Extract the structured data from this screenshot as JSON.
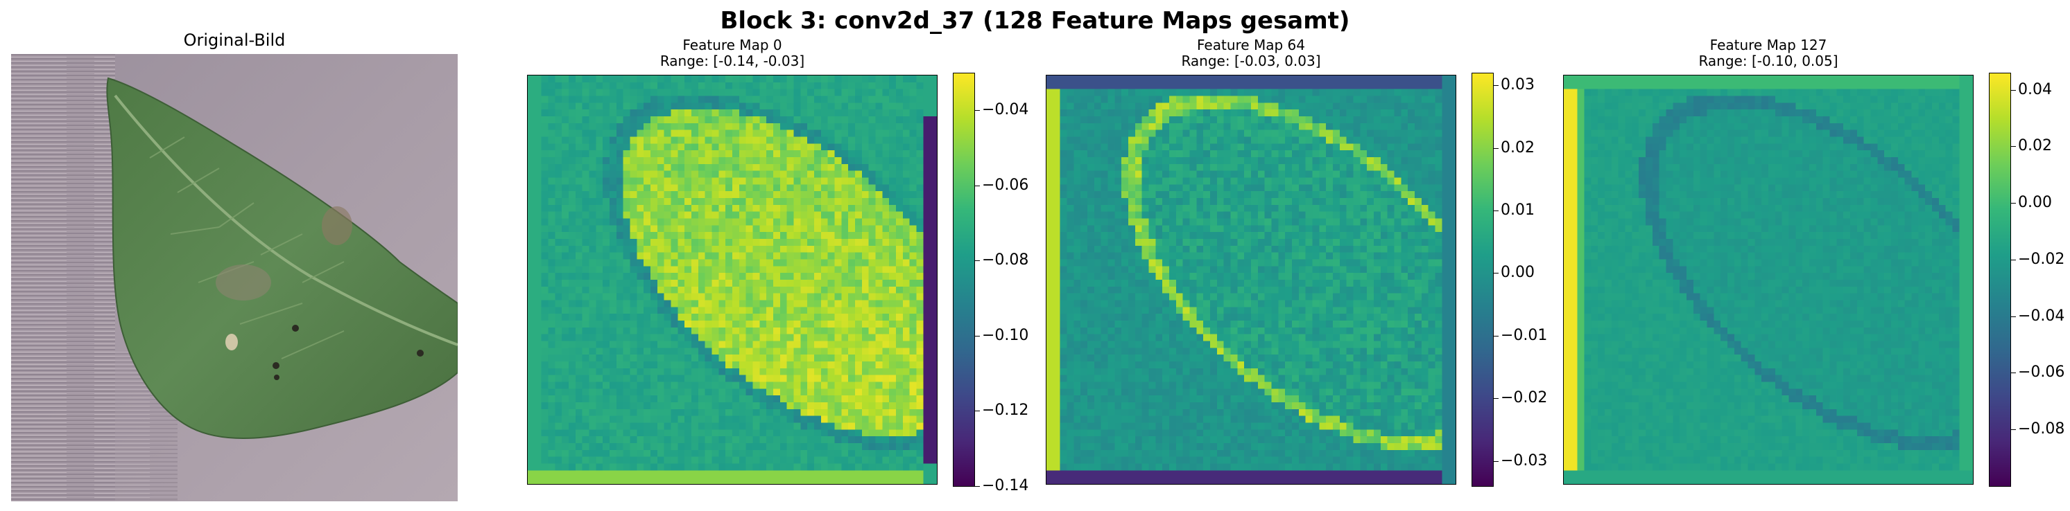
{
  "figure": {
    "title": "Block 3: conv2d_37 (128 Feature Maps gesamt)"
  },
  "original": {
    "title": "Original-Bild"
  },
  "chart_data": [
    {
      "type": "heatmap",
      "title": "Feature Map 0",
      "subtitle": "Range: [-0.14, -0.03]",
      "value_range": [
        -0.14,
        -0.03
      ],
      "colormap": "viridis",
      "colorbar_ticks": [
        -0.04,
        -0.06,
        -0.08,
        -0.1,
        -0.12,
        -0.14
      ],
      "colorbar_tick_labels": [
        "−0.04",
        "−0.06",
        "−0.08",
        "−0.10",
        "−0.12",
        "−0.14"
      ]
    },
    {
      "type": "heatmap",
      "title": "Feature Map 64",
      "subtitle": "Range: [-0.03, 0.03]",
      "value_range": [
        -0.034,
        0.032
      ],
      "colormap": "viridis",
      "colorbar_ticks": [
        0.03,
        0.02,
        0.01,
        0.0,
        -0.01,
        -0.02,
        -0.03
      ],
      "colorbar_tick_labels": [
        "0.03",
        "0.02",
        "0.01",
        "0.00",
        "−0.01",
        "−0.02",
        "−0.03"
      ]
    },
    {
      "type": "heatmap",
      "title": "Feature Map 127",
      "subtitle": "Range: [-0.10, 0.05]",
      "value_range": [
        -0.1,
        0.046
      ],
      "colormap": "viridis",
      "colorbar_ticks": [
        0.04,
        0.02,
        0.0,
        -0.02,
        -0.04,
        -0.06,
        -0.08
      ],
      "colorbar_tick_labels": [
        "0.04",
        "0.02",
        "0.00",
        "−0.02",
        "−0.04",
        "−0.06",
        "−0.08"
      ]
    }
  ]
}
